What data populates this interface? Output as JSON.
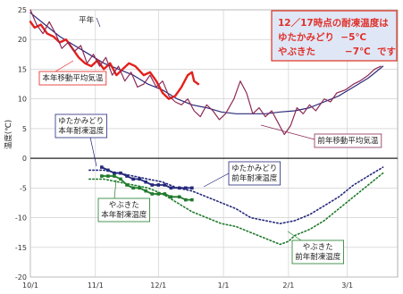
{
  "chart_data": {
    "type": "line",
    "ylabel": "温度(℃)",
    "ylim": [
      -20,
      25
    ],
    "yticks": [
      25,
      20,
      15,
      10,
      5,
      0,
      -5,
      -10,
      -15,
      -20
    ],
    "xlim": [
      "10/1",
      "3/25"
    ],
    "xticks": [
      "10/1",
      "11/1",
      "12/1",
      "1/1",
      "2/1",
      "3/1"
    ],
    "grid": true,
    "note": {
      "lines": [
        "12／17時点の耐凍温度は",
        "ゆたかみどり  −5℃",
        "やぶきた         −7℃  です"
      ],
      "border_color": "#e03020",
      "background": "#dfe7f6",
      "text_color": "#e0302a"
    },
    "series": [
      {
        "name": "平年",
        "color": "#2b2a78",
        "style": "solid",
        "points": [
          [
            "10/1",
            24.5
          ],
          [
            "10/8",
            22.5
          ],
          [
            "10/15",
            20.5
          ],
          [
            "10/22",
            19
          ],
          [
            "10/29",
            17.5
          ],
          [
            "11/5",
            16
          ],
          [
            "11/12",
            15
          ],
          [
            "11/19",
            14
          ],
          [
            "11/26",
            12.5
          ],
          [
            "12/3",
            11.5
          ],
          [
            "12/10",
            10
          ],
          [
            "12/17",
            9
          ],
          [
            "12/24",
            8.5
          ],
          [
            "12/31",
            7.8
          ],
          [
            "1/7",
            7.5
          ],
          [
            "1/14",
            7.5
          ],
          [
            "1/21",
            7.5
          ],
          [
            "1/28",
            7.8
          ],
          [
            "2/4",
            8
          ],
          [
            "2/11",
            8.5
          ],
          [
            "2/18",
            9.5
          ],
          [
            "2/25",
            10.5
          ],
          [
            "3/4",
            12
          ],
          [
            "3/11",
            13.5
          ],
          [
            "3/18",
            15.5
          ]
        ]
      },
      {
        "name": "本年移動平均気温",
        "color": "#e3201b",
        "style": "thick",
        "points": [
          [
            "10/1",
            23
          ],
          [
            "10/3",
            22
          ],
          [
            "10/6",
            22.5
          ],
          [
            "10/9",
            21
          ],
          [
            "10/12",
            20.5
          ],
          [
            "10/15",
            19.5
          ],
          [
            "10/18",
            20
          ],
          [
            "10/21",
            18.5
          ],
          [
            "10/24",
            17
          ],
          [
            "10/27",
            16
          ],
          [
            "10/30",
            15.5
          ],
          [
            "11/2",
            16.5
          ],
          [
            "11/5",
            15
          ],
          [
            "11/8",
            16
          ],
          [
            "11/11",
            14
          ],
          [
            "11/14",
            15
          ],
          [
            "11/17",
            16
          ],
          [
            "11/20",
            15.5
          ],
          [
            "11/24",
            14
          ],
          [
            "11/27",
            14.5
          ],
          [
            "11/30",
            13
          ],
          [
            "12/3",
            11
          ],
          [
            "12/6",
            10
          ],
          [
            "12/9",
            10.5
          ],
          [
            "12/12",
            12
          ],
          [
            "12/15",
            14
          ],
          [
            "12/17",
            14.5
          ],
          [
            "12/18",
            13
          ],
          [
            "12/20",
            12.5
          ]
        ]
      },
      {
        "name": "前年移動平均気温",
        "color": "#8c2a56",
        "style": "solid",
        "points": [
          [
            "10/1",
            25
          ],
          [
            "10/4",
            22.5
          ],
          [
            "10/7",
            21
          ],
          [
            "10/10",
            23
          ],
          [
            "10/13",
            21
          ],
          [
            "10/16",
            18.5
          ],
          [
            "10/19",
            19.5
          ],
          [
            "10/22",
            18
          ],
          [
            "10/25",
            19
          ],
          [
            "10/28",
            16
          ],
          [
            "10/31",
            17.5
          ],
          [
            "11/3",
            15.5
          ],
          [
            "11/6",
            17
          ],
          [
            "11/9",
            14
          ],
          [
            "11/12",
            15.5
          ],
          [
            "11/15",
            13
          ],
          [
            "11/18",
            14.5
          ],
          [
            "11/21",
            12
          ],
          [
            "11/24",
            12.5
          ],
          [
            "11/27",
            14
          ],
          [
            "11/30",
            12
          ],
          [
            "12/3",
            13
          ],
          [
            "12/6",
            10.5
          ],
          [
            "12/9",
            9.5
          ],
          [
            "12/12",
            9
          ],
          [
            "12/15",
            10
          ],
          [
            "12/18",
            8
          ],
          [
            "12/21",
            7
          ],
          [
            "12/24",
            9
          ],
          [
            "12/27",
            8
          ],
          [
            "12/30",
            6.5
          ],
          [
            "1/2",
            7.5
          ],
          [
            "1/6",
            10
          ],
          [
            "1/9",
            13
          ],
          [
            "1/12",
            11
          ],
          [
            "1/15",
            7.5
          ],
          [
            "1/18",
            8.5
          ],
          [
            "1/21",
            7
          ],
          [
            "1/24",
            8
          ],
          [
            "1/27",
            6
          ],
          [
            "1/30",
            4
          ],
          [
            "2/2",
            5.5
          ],
          [
            "2/5",
            8.5
          ],
          [
            "2/8",
            7.5
          ],
          [
            "2/11",
            9
          ],
          [
            "2/14",
            8
          ],
          [
            "2/18",
            10
          ],
          [
            "2/21",
            9.5
          ],
          [
            "2/24",
            11
          ],
          [
            "2/28",
            11.5
          ],
          [
            "3/4",
            12.5
          ],
          [
            "3/7",
            13
          ],
          [
            "3/11",
            14
          ],
          [
            "3/14",
            15
          ],
          [
            "3/17",
            15.5
          ]
        ]
      },
      {
        "name": "ゆたかみどり 本年耐凍温度",
        "color": "#24287a",
        "style": "solid-markers",
        "points": [
          [
            "11/4",
            -1.5
          ],
          [
            "11/7",
            -2
          ],
          [
            "11/10",
            -2.5
          ],
          [
            "11/13",
            -2.5
          ],
          [
            "11/16",
            -3
          ],
          [
            "11/19",
            -3.5
          ],
          [
            "11/22",
            -3.5
          ],
          [
            "11/25",
            -4
          ],
          [
            "11/28",
            -4.5
          ],
          [
            "12/1",
            -4.5
          ],
          [
            "12/4",
            -4.5
          ],
          [
            "12/7",
            -5
          ],
          [
            "12/11",
            -5
          ],
          [
            "12/14",
            -5
          ],
          [
            "12/17",
            -5
          ]
        ]
      },
      {
        "name": "ゆたかみどり 前年耐凍温度",
        "color": "#24287a",
        "style": "dotted",
        "points": [
          [
            "10/29",
            -2
          ],
          [
            "11/5",
            -2
          ],
          [
            "11/12",
            -2.5
          ],
          [
            "11/19",
            -3
          ],
          [
            "11/26",
            -3.5
          ],
          [
            "12/3",
            -4
          ],
          [
            "12/10",
            -5
          ],
          [
            "12/17",
            -5.5
          ],
          [
            "12/24",
            -6.5
          ],
          [
            "12/31",
            -7.5
          ],
          [
            "1/7",
            -8.5
          ],
          [
            "1/14",
            -10
          ],
          [
            "1/21",
            -10.5
          ],
          [
            "1/28",
            -11
          ],
          [
            "2/4",
            -10.5
          ],
          [
            "2/11",
            -9.5
          ],
          [
            "2/18",
            -8
          ],
          [
            "2/25",
            -6.5
          ],
          [
            "3/4",
            -4.5
          ],
          [
            "3/11",
            -3
          ],
          [
            "3/18",
            -1.5
          ]
        ]
      },
      {
        "name": "やぶきた 本年耐凍温度",
        "color": "#1f7a2a",
        "style": "solid-markers",
        "points": [
          [
            "11/4",
            -3
          ],
          [
            "11/7",
            -3
          ],
          [
            "11/10",
            -3
          ],
          [
            "11/13",
            -3.5
          ],
          [
            "11/16",
            -4.5
          ],
          [
            "11/19",
            -5
          ],
          [
            "11/22",
            -5
          ],
          [
            "11/25",
            -5.5
          ],
          [
            "11/28",
            -6
          ],
          [
            "12/1",
            -6
          ],
          [
            "12/4",
            -6
          ],
          [
            "12/7",
            -6.5
          ],
          [
            "12/11",
            -6.5
          ],
          [
            "12/14",
            -7
          ],
          [
            "12/17",
            -7
          ]
        ]
      },
      {
        "name": "やぶきた 前年耐凍温度",
        "color": "#1f7a2a",
        "style": "dotted",
        "points": [
          [
            "10/29",
            -3.5
          ],
          [
            "11/5",
            -3.5
          ],
          [
            "11/12",
            -4
          ],
          [
            "11/19",
            -4.5
          ],
          [
            "11/26",
            -5
          ],
          [
            "12/3",
            -6
          ],
          [
            "12/10",
            -7.5
          ],
          [
            "12/17",
            -9
          ],
          [
            "12/24",
            -10
          ],
          [
            "12/31",
            -11
          ],
          [
            "1/7",
            -11.5
          ],
          [
            "1/14",
            -12.5
          ],
          [
            "1/21",
            -13.5
          ],
          [
            "1/28",
            -14.5
          ],
          [
            "2/1",
            -14
          ],
          [
            "2/4",
            -13
          ],
          [
            "2/11",
            -12
          ],
          [
            "2/18",
            -10.5
          ],
          [
            "2/25",
            -8.5
          ],
          [
            "3/4",
            -6.5
          ],
          [
            "3/11",
            -4.5
          ],
          [
            "3/18",
            -2.5
          ]
        ]
      }
    ],
    "annotations": [
      {
        "id": "heinen",
        "lines": [
          "平年"
        ],
        "color": "#2b2a78",
        "box": false
      },
      {
        "id": "honnen",
        "lines": [
          "本年移動平均気温"
        ],
        "color": "#e3201b",
        "box": true
      },
      {
        "id": "zennen",
        "lines": [
          "前年移動平均気温"
        ],
        "color": "#8c2a56",
        "box": true
      },
      {
        "id": "yutaka-honnen",
        "lines": [
          "ゆたかみどり",
          "本年耐凍温度"
        ],
        "color": "#24287a",
        "box": true
      },
      {
        "id": "yutaka-zennen",
        "lines": [
          "ゆたかみどり",
          "前年耐凍温度"
        ],
        "color": "#24287a",
        "box": true
      },
      {
        "id": "yabukita-honnen",
        "lines": [
          "やぶきた",
          "本年耐凍温度"
        ],
        "color": "#1f7a2a",
        "box": true
      },
      {
        "id": "yabukita-zennen",
        "lines": [
          "やぶきた",
          "前年耐凍温度"
        ],
        "color": "#1f7a2a",
        "box": true
      }
    ]
  }
}
